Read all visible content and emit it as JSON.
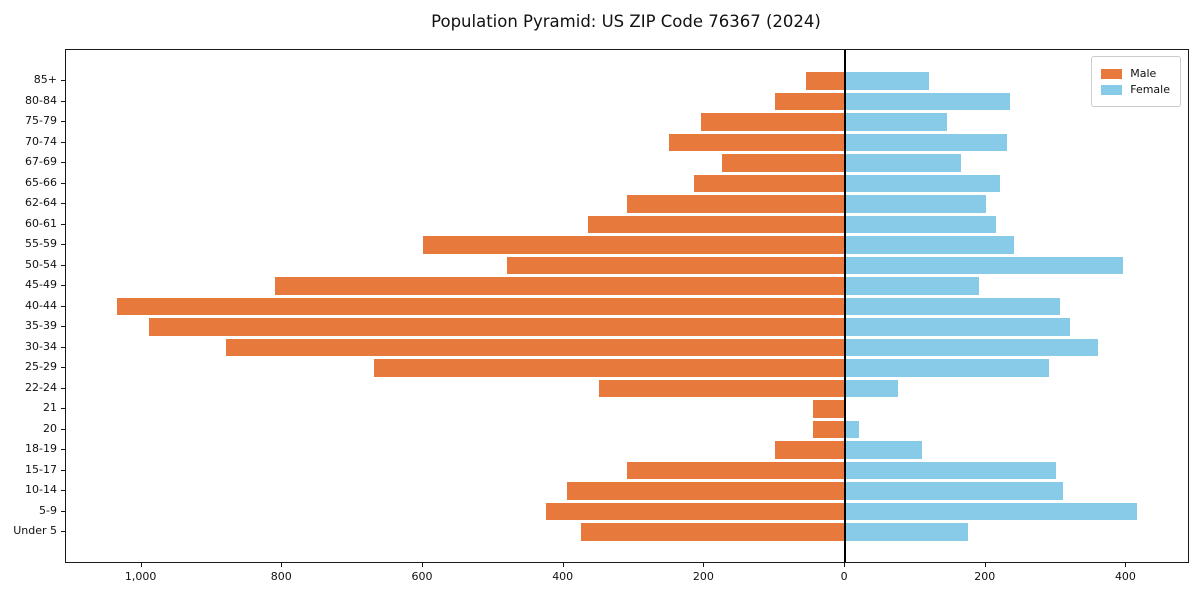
{
  "chart_data": {
    "type": "bar",
    "variant": "population-pyramid",
    "title": "Population Pyramid: US ZIP Code 76367 (2024)",
    "categories": [
      "85+",
      "80-84",
      "75-79",
      "70-74",
      "67-69",
      "65-66",
      "62-64",
      "60-61",
      "55-59",
      "50-54",
      "45-49",
      "40-44",
      "35-39",
      "30-34",
      "25-29",
      "22-24",
      "21",
      "20",
      "18-19",
      "15-17",
      "10-14",
      "5-9",
      "Under 5"
    ],
    "series": [
      {
        "name": "Male",
        "side": "left",
        "color": "#e8793c",
        "values": [
          55,
          100,
          205,
          250,
          175,
          215,
          310,
          365,
          600,
          480,
          810,
          1035,
          990,
          880,
          670,
          350,
          45,
          45,
          100,
          310,
          395,
          425,
          375
        ]
      },
      {
        "name": "Female",
        "side": "right",
        "color": "#87cbe8",
        "values": [
          120,
          235,
          145,
          230,
          165,
          220,
          200,
          215,
          240,
          395,
          190,
          305,
          320,
          360,
          290,
          75,
          0,
          20,
          110,
          300,
          310,
          415,
          175
        ]
      }
    ],
    "x_tick_labels": [
      "1,000",
      "800",
      "600",
      "400",
      "200",
      "0",
      "200",
      "400"
    ],
    "x_tick_values": [
      -1000,
      -800,
      -600,
      -400,
      -200,
      0,
      200,
      400
    ],
    "xlim": [
      -1107.5,
      487.5
    ],
    "grid": false,
    "zero_line_color": "#000000",
    "axis_color": "#1a1a1a",
    "legend_position": "upper right"
  }
}
